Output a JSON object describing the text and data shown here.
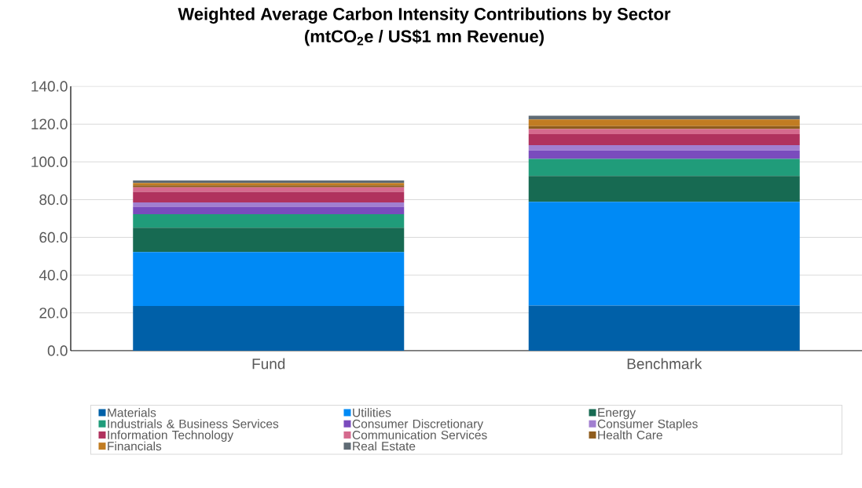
{
  "chart_data": {
    "type": "bar",
    "stacked": true,
    "title": "Weighted Average Carbon Intensity Contributions by Sector",
    "subtitle": "(mtCO$_{2}$e / US$1 mn Revenue)",
    "categories": [
      "Fund",
      "Benchmark"
    ],
    "series": [
      {
        "name": "Materials",
        "color": "#0060a8",
        "values": [
          23.7,
          23.9
        ]
      },
      {
        "name": "Utilities",
        "color": "#008af5",
        "values": [
          28.5,
          54.9
        ]
      },
      {
        "name": "Energy",
        "color": "#176a52",
        "values": [
          12.9,
          13.7
        ]
      },
      {
        "name": "Industrials & Business Services",
        "color": "#209c7a",
        "values": [
          7.2,
          9.1
        ]
      },
      {
        "name": "Consumer Discretionary",
        "color": "#7a4bbd",
        "values": [
          3.9,
          4.4
        ]
      },
      {
        "name": "Consumer Staples",
        "color": "#a17fd0",
        "values": [
          2.3,
          2.8
        ]
      },
      {
        "name": "Information Technology",
        "color": "#b0325e",
        "values": [
          5.6,
          5.9
        ]
      },
      {
        "name": "Communication Services",
        "color": "#d56a8e",
        "values": [
          2.4,
          2.7
        ]
      },
      {
        "name": "Health Care",
        "color": "#8f5c1d",
        "values": [
          1.1,
          1.5
        ]
      },
      {
        "name": "Financials",
        "color": "#c17c22",
        "values": [
          1.2,
          3.6
        ]
      },
      {
        "name": "Real Estate",
        "color": "#5f6b75",
        "values": [
          1.3,
          1.9
        ]
      }
    ],
    "ylim": [
      0,
      140
    ],
    "yticks": [
      {
        "value": 0,
        "label": "0.0"
      },
      {
        "value": 20,
        "label": "20.0"
      },
      {
        "value": 40,
        "label": "40.0"
      },
      {
        "value": 60,
        "label": "60.0"
      },
      {
        "value": 80,
        "label": "80.0"
      },
      {
        "value": 100,
        "label": "100.0"
      },
      {
        "value": 120,
        "label": "120.0"
      },
      {
        "value": 140,
        "label": "140.0"
      }
    ],
    "grid": "y",
    "legend": "bottom"
  }
}
